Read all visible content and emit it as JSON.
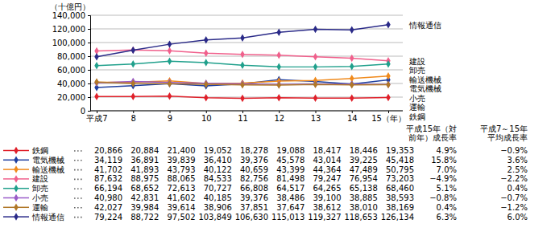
{
  "chart_data": {
    "type": "line",
    "y_label": "（十億円）",
    "categories": [
      "平成7",
      "8",
      "9",
      "10",
      "11",
      "12",
      "13",
      "14",
      "15（年）"
    ],
    "ylim": [
      0,
      140000
    ],
    "yticks": [
      0,
      {
        "value": 20000,
        "label": "20,000"
      },
      {
        "value": 40000,
        "label": "40,000"
      },
      {
        "value": 60000,
        "label": "60,000"
      },
      {
        "value": 80000,
        "label": "80,000"
      },
      {
        "value": 100000,
        "label": "100,000"
      },
      {
        "value": 120000,
        "label": "120,000"
      },
      {
        "value": 140000,
        "label": "140,000"
      }
    ],
    "grid": true,
    "marker": "diamond",
    "table_headers": [
      [
        "平成15年（対",
        "前年）成長率"
      ],
      [
        "平成7～15年",
        "平均成長率"
      ]
    ],
    "series": [
      {
        "name": "鉄鋼",
        "color": "#e0202a",
        "values": [
          20866,
          20884,
          21400,
          19052,
          18278,
          19088,
          18417,
          18446,
          19353
        ],
        "value_labels": [
          "20,866",
          "20,884",
          "21,400",
          "19,052",
          "18,278",
          "19,088",
          "18,417",
          "18,446",
          "19,353"
        ],
        "growth": [
          4.9,
          -0.9
        ],
        "growth_labels": [
          "4.9%",
          "−0.9%"
        ]
      },
      {
        "name": "電気機械",
        "color": "#2040a0",
        "values": [
          34119,
          36891,
          39839,
          36410,
          39376,
          45578,
          43014,
          39225,
          45418
        ],
        "value_labels": [
          "34,119",
          "36,891",
          "39,839",
          "36,410",
          "39,376",
          "45,578",
          "43,014",
          "39,225",
          "45,418"
        ],
        "growth": [
          15.8,
          3.6
        ],
        "growth_labels": [
          "15.8%",
          "3.6%"
        ]
      },
      {
        "name": "輸送機械",
        "color": "#f08a1c",
        "values": [
          41702,
          41893,
          43793,
          40122,
          40659,
          43399,
          44364,
          47489,
          50795
        ],
        "value_labels": [
          "41,702",
          "41,893",
          "43,793",
          "40,122",
          "40,659",
          "43,399",
          "44,364",
          "47,489",
          "50,795"
        ],
        "growth": [
          7.0,
          2.5
        ],
        "growth_labels": [
          "7.0%",
          "2.5%"
        ]
      },
      {
        "name": "建設",
        "color": "#f0608c",
        "values": [
          87632,
          88975,
          88065,
          84533,
          82756,
          81498,
          79247,
          76954,
          73203
        ],
        "value_labels": [
          "87,632",
          "88,975",
          "88,065",
          "84,533",
          "82,756",
          "81,498",
          "79,247",
          "76,954",
          "73,203"
        ],
        "growth": [
          -4.9,
          -2.2
        ],
        "growth_labels": [
          "−4.9%",
          "−2.2%"
        ]
      },
      {
        "name": "卸売",
        "color": "#20a08c",
        "values": [
          66194,
          68652,
          72613,
          70727,
          66808,
          64517,
          64265,
          65138,
          68460
        ],
        "value_labels": [
          "66,194",
          "68,652",
          "72,613",
          "70,727",
          "66,808",
          "64,517",
          "64,265",
          "65,138",
          "68,460"
        ],
        "growth": [
          5.1,
          0.4
        ],
        "growth_labels": [
          "5.1%",
          "0.4%"
        ]
      },
      {
        "name": "小売",
        "color": "#9a5cc8",
        "values": [
          40980,
          42831,
          41602,
          40185,
          39376,
          38486,
          39100,
          38885,
          38593
        ],
        "value_labels": [
          "40,980",
          "42,831",
          "41,602",
          "40,185",
          "39,376",
          "38,486",
          "39,100",
          "38,885",
          "38,593"
        ],
        "growth": [
          -0.8,
          -0.7
        ],
        "growth_labels": [
          "−0.8%",
          "−0.7%"
        ]
      },
      {
        "name": "運輸",
        "color": "#b07828",
        "values": [
          42027,
          39984,
          39614,
          38906,
          37851,
          37647,
          38612,
          38010,
          38169
        ],
        "value_labels": [
          "42,027",
          "39,984",
          "39,614",
          "38,906",
          "37,851",
          "37,647",
          "38,612",
          "38,010",
          "38,169"
        ],
        "growth": [
          0.4,
          -1.2
        ],
        "growth_labels": [
          "0.4%",
          "−1.2%"
        ]
      },
      {
        "name": "情報通信",
        "color": "#2a2a88",
        "values": [
          79224,
          88722,
          97502,
          103849,
          106630,
          115013,
          119327,
          118653,
          126134
        ],
        "value_labels": [
          "79,224",
          "88,722",
          "97,502",
          "103,849",
          "106,630",
          "115,013",
          "119,327",
          "118,653",
          "126,134"
        ],
        "growth": [
          6.3,
          6.0
        ],
        "growth_labels": [
          "6.3%",
          "6.0%"
        ]
      }
    ]
  }
}
